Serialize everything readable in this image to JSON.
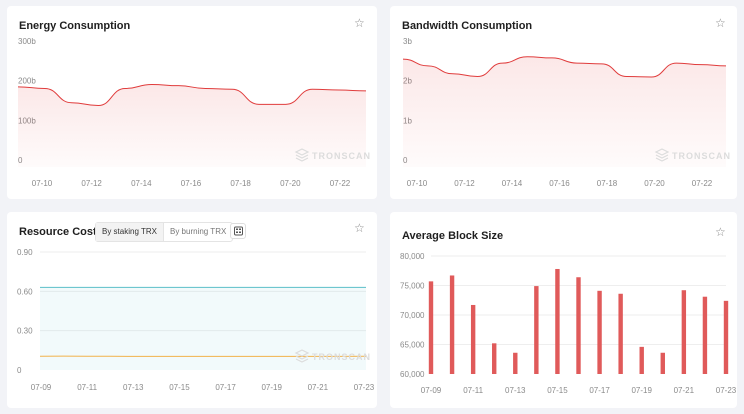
{
  "cards": {
    "energy": {
      "title": "Energy Consumption"
    },
    "bandwidth": {
      "title": "Bandwidth Consumption"
    },
    "resource": {
      "title": "Resource Costs",
      "tabs": [
        "By staking TRX",
        "By burning TRX"
      ],
      "active_tab": "By staking TRX"
    },
    "block": {
      "title": "Average Block Size"
    }
  },
  "watermark": "TRONSCAN",
  "icons": {
    "favorite": "star-icon",
    "calculator": "calculator-icon",
    "watermark": "tronscan-logo-icon"
  },
  "colors": {
    "red": "#e03c3c",
    "red_bar": "#e05a5a",
    "teal": "#5bbfc9",
    "orange": "#f2b24a",
    "grid": "#eeeeee",
    "tick": "#8a8a8a"
  },
  "chart_data": [
    {
      "id": "energy",
      "type": "area",
      "title": "Energy Consumption",
      "y_ticks": [
        "0",
        "100b",
        "200b",
        "300b"
      ],
      "ylim": [
        0,
        300
      ],
      "x_ticks": [
        "07-10",
        "07-12",
        "07-14",
        "07-16",
        "07-18",
        "07-20",
        "07-22"
      ],
      "xlim": [
        0,
        13
      ],
      "points": [
        [
          0,
          202
        ],
        [
          1,
          198
        ],
        [
          2,
          162
        ],
        [
          3,
          155
        ],
        [
          4,
          198
        ],
        [
          5,
          208
        ],
        [
          6,
          205
        ],
        [
          7,
          198
        ],
        [
          8,
          196
        ],
        [
          9,
          158
        ],
        [
          10,
          158
        ],
        [
          11,
          196
        ],
        [
          12,
          194
        ],
        [
          13,
          192
        ]
      ],
      "unit": "b"
    },
    {
      "id": "bandwidth",
      "type": "area",
      "title": "Bandwidth Consumption",
      "y_ticks": [
        "0",
        "1b",
        "2b",
        "3b"
      ],
      "ylim": [
        0,
        3
      ],
      "x_ticks": [
        "07-10",
        "07-12",
        "07-14",
        "07-16",
        "07-18",
        "07-20",
        "07-22"
      ],
      "xlim": [
        0,
        13
      ],
      "points": [
        [
          0,
          2.72
        ],
        [
          1,
          2.55
        ],
        [
          2,
          2.35
        ],
        [
          3,
          2.28
        ],
        [
          4,
          2.62
        ],
        [
          5,
          2.78
        ],
        [
          6,
          2.75
        ],
        [
          7,
          2.62
        ],
        [
          8,
          2.6
        ],
        [
          9,
          2.28
        ],
        [
          10,
          2.27
        ],
        [
          11,
          2.62
        ],
        [
          12,
          2.58
        ],
        [
          13,
          2.55
        ]
      ],
      "unit": "b"
    },
    {
      "id": "resource",
      "type": "line",
      "title": "Resource Costs",
      "y_ticks": [
        "0",
        "0.30",
        "0.60",
        "0.90"
      ],
      "ylim": [
        0,
        0.9
      ],
      "x_ticks": [
        "07-09",
        "07-11",
        "07-13",
        "07-15",
        "07-17",
        "07-19",
        "07-21",
        "07-23"
      ],
      "xlim": [
        0,
        14
      ],
      "series": [
        {
          "name": "teal",
          "values": [
            0.63,
            0.63,
            0.63,
            0.63,
            0.63,
            0.63,
            0.63,
            0.63,
            0.63,
            0.63,
            0.63,
            0.63,
            0.63,
            0.63,
            0.63
          ]
        },
        {
          "name": "orange",
          "values": [
            0.105,
            0.106,
            0.105,
            0.105,
            0.104,
            0.104,
            0.104,
            0.104,
            0.104,
            0.104,
            0.104,
            0.104,
            0.104,
            0.104,
            0.105
          ]
        }
      ]
    },
    {
      "id": "block",
      "type": "bar",
      "title": "Average Block Size",
      "y_ticks": [
        "60,000",
        "65,000",
        "70,000",
        "75,000",
        "80,000"
      ],
      "ylim": [
        60000,
        80000
      ],
      "x_ticks": [
        "07-09",
        "07-11",
        "07-13",
        "07-15",
        "07-17",
        "07-19",
        "07-21",
        "07-23"
      ],
      "xlim": [
        0,
        14
      ],
      "values": [
        75700,
        76700,
        71700,
        65200,
        63600,
        74900,
        77800,
        76400,
        74100,
        73600,
        64600,
        63600,
        74200,
        73100,
        72400
      ]
    }
  ]
}
